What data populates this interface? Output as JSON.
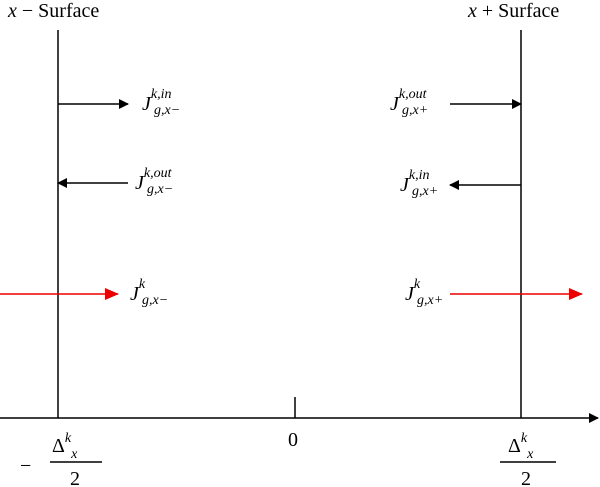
{
  "surfaces": [
    {
      "variable": "x",
      "label": "− Surface"
    },
    {
      "variable": "x",
      "label": "+ Surface"
    }
  ],
  "currents": [
    {
      "symbol": "J",
      "superscript": "k,in",
      "subscript": "g,x−"
    },
    {
      "symbol": "J",
      "superscript": "k,out",
      "subscript": "g,x−"
    },
    {
      "symbol": "J",
      "superscript": "k",
      "subscript": "g,x−"
    },
    {
      "symbol": "J",
      "superscript": "k,out",
      "subscript": "g,x+"
    },
    {
      "symbol": "J",
      "superscript": "k,in",
      "subscript": "g,x+"
    },
    {
      "symbol": "J",
      "superscript": "k",
      "subscript": "g,x+"
    }
  ],
  "axis": {
    "origin": "0",
    "left_bound": {
      "sign": "−",
      "numerator": "Δ",
      "superscript": "k",
      "subscript": "x",
      "denominator": "2"
    },
    "right_bound": {
      "numerator": "Δ",
      "superscript": "k",
      "subscript": "x",
      "denominator": "2"
    }
  }
}
